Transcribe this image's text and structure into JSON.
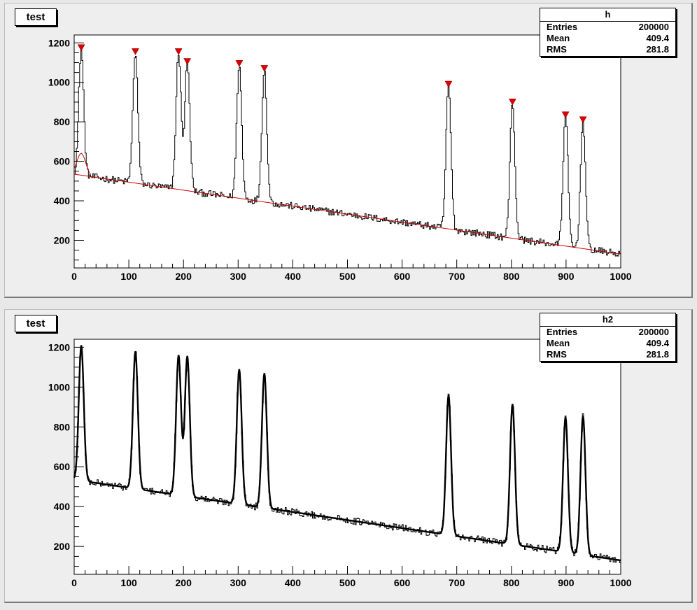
{
  "colors": {
    "histogram": "#000000",
    "background_fit": "#cc0000",
    "peak_marker": "#dd0000",
    "pad": "#eeeeee"
  },
  "panels": [
    {
      "title": "test",
      "stats": {
        "name": "h",
        "rows": [
          {
            "label": "Entries",
            "value": "200000"
          },
          {
            "label": "Mean",
            "value": "409.4"
          },
          {
            "label": "RMS",
            "value": "281.8"
          }
        ]
      }
    },
    {
      "title": "test",
      "stats": {
        "name": "h2",
        "rows": [
          {
            "label": "Entries",
            "value": "200000"
          },
          {
            "label": "Mean",
            "value": "409.4"
          },
          {
            "label": "RMS",
            "value": "281.8"
          }
        ]
      }
    }
  ],
  "chart_data": [
    {
      "type": "histogram",
      "title": "test",
      "xlim": [
        0,
        1000
      ],
      "ylim": [
        60,
        1240
      ],
      "xticks": [
        0,
        100,
        200,
        300,
        400,
        500,
        600,
        700,
        800,
        900,
        1000
      ],
      "yticks": [
        200,
        400,
        600,
        800,
        1000,
        1200
      ],
      "background_line": {
        "x": [
          0,
          1000
        ],
        "y": [
          535,
          130
        ]
      },
      "peaks": [
        {
          "x": 13,
          "y": 1170
        },
        {
          "x": 112,
          "y": 1150
        },
        {
          "x": 191,
          "y": 1150
        },
        {
          "x": 207,
          "y": 1100
        },
        {
          "x": 302,
          "y": 1090
        },
        {
          "x": 348,
          "y": 1065
        },
        {
          "x": 685,
          "y": 985
        },
        {
          "x": 802,
          "y": 895
        },
        {
          "x": 899,
          "y": 830
        },
        {
          "x": 931,
          "y": 805
        }
      ],
      "peak_width": 4.5,
      "noise_amplitude": 18,
      "bin_width": 2,
      "markers": "triangle-down"
    },
    {
      "type": "histogram",
      "title": "test",
      "xlim": [
        0,
        1000
      ],
      "ylim": [
        60,
        1240
      ],
      "xticks": [
        0,
        100,
        200,
        300,
        400,
        500,
        600,
        700,
        800,
        900,
        1000
      ],
      "yticks": [
        200,
        400,
        600,
        800,
        1000,
        1200
      ],
      "background_line": {
        "x": [
          0,
          1000
        ],
        "y": [
          535,
          130
        ]
      },
      "peaks": [
        {
          "x": 13,
          "y": 1210
        },
        {
          "x": 112,
          "y": 1180
        },
        {
          "x": 191,
          "y": 1160
        },
        {
          "x": 207,
          "y": 1155
        },
        {
          "x": 302,
          "y": 1090
        },
        {
          "x": 348,
          "y": 1070
        },
        {
          "x": 685,
          "y": 960
        },
        {
          "x": 802,
          "y": 915
        },
        {
          "x": 899,
          "y": 850
        },
        {
          "x": 931,
          "y": 855
        }
      ],
      "peak_width": 4.5,
      "noise_amplitude": 18,
      "bin_width": 2,
      "fit_line": "thick-black"
    }
  ]
}
